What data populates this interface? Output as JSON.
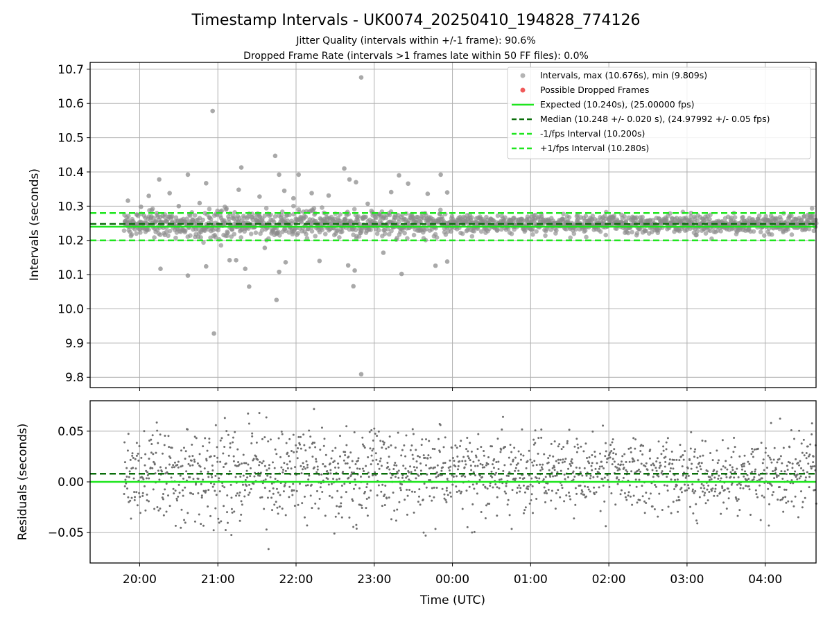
{
  "chart_data": {
    "title": "Timestamp Intervals - UK0074_20250410_194828_774126",
    "subtitle_lines": [
      "Jitter Quality (intervals within +/-1 frame): 90.6%",
      "Dropped Frame Rate (intervals >1 frames late within 50 FF files): 0.0%"
    ],
    "colors": {
      "points": "#8c8c8c",
      "residual_points": "#6e6e6e",
      "dropped": "#f05a5a",
      "expected": "#1ee61e",
      "median": "#0a6e0a",
      "fps_interval": "#1ee61e",
      "grid": "#b0b0b0"
    },
    "panels": [
      {
        "type": "scatter",
        "ylabel": "Intervals (seconds)",
        "ylim": [
          9.77,
          10.72
        ],
        "yticks": [
          9.8,
          9.9,
          10.0,
          10.1,
          10.2,
          10.3,
          10.4,
          10.5,
          10.6,
          10.7
        ],
        "ytick_labels": [
          "9.8",
          "9.9",
          "10.0",
          "10.1",
          "10.2",
          "10.3",
          "10.4",
          "10.5",
          "10.6",
          "10.7"
        ],
        "grid": true,
        "legend_position": "top-right",
        "legend": [
          "Intervals, max (10.676s), min (9.809s)",
          "Possible Dropped Frames",
          "Expected (10.240s), (25.00000 fps)",
          "Median (10.248 +/- 0.020 s), (24.97992 +/- 0.05 fps)",
          "-1/fps Interval (10.200s)",
          "+1/fps Interval (10.280s)"
        ],
        "hlines": [
          {
            "name": "Expected",
            "y": 10.24,
            "style": "solid"
          },
          {
            "name": "Median",
            "y": 10.248,
            "style": "dashed"
          },
          {
            "name": "-1/fps Interval",
            "y": 10.2,
            "style": "dashed"
          },
          {
            "name": "+1/fps Interval",
            "y": 10.28,
            "style": "dashed"
          }
        ],
        "series": [
          {
            "name": "Intervals",
            "typical_spread_s": 0.02,
            "outliers": [
              {
                "t": "19:51",
                "y": 10.316
              },
              {
                "t": "20:01",
                "y": 10.298
              },
              {
                "t": "20:07",
                "y": 10.33
              },
              {
                "t": "20:15",
                "y": 10.378
              },
              {
                "t": "20:16",
                "y": 10.117
              },
              {
                "t": "20:23",
                "y": 10.338
              },
              {
                "t": "20:30",
                "y": 10.3
              },
              {
                "t": "20:37",
                "y": 10.097
              },
              {
                "t": "20:37",
                "y": 10.392
              },
              {
                "t": "20:46",
                "y": 10.309
              },
              {
                "t": "20:51",
                "y": 10.124
              },
              {
                "t": "20:51",
                "y": 10.367
              },
              {
                "t": "20:56",
                "y": 10.578
              },
              {
                "t": "20:57",
                "y": 9.928
              },
              {
                "t": "21:09",
                "y": 10.142
              },
              {
                "t": "21:14",
                "y": 10.142
              },
              {
                "t": "21:16",
                "y": 10.348
              },
              {
                "t": "21:18",
                "y": 10.413
              },
              {
                "t": "21:21",
                "y": 10.117
              },
              {
                "t": "21:24",
                "y": 10.065
              },
              {
                "t": "21:32",
                "y": 10.328
              },
              {
                "t": "21:36",
                "y": 10.178
              },
              {
                "t": "21:44",
                "y": 10.447
              },
              {
                "t": "21:45",
                "y": 10.026
              },
              {
                "t": "21:47",
                "y": 10.108
              },
              {
                "t": "21:47",
                "y": 10.392
              },
              {
                "t": "21:51",
                "y": 10.345
              },
              {
                "t": "21:52",
                "y": 10.136
              },
              {
                "t": "21:58",
                "y": 10.323
              },
              {
                "t": "22:02",
                "y": 10.392
              },
              {
                "t": "22:12",
                "y": 10.338
              },
              {
                "t": "22:18",
                "y": 10.14
              },
              {
                "t": "22:25",
                "y": 10.331
              },
              {
                "t": "22:37",
                "y": 10.41
              },
              {
                "t": "22:40",
                "y": 10.127
              },
              {
                "t": "22:41",
                "y": 10.378
              },
              {
                "t": "22:44",
                "y": 10.066
              },
              {
                "t": "22:45",
                "y": 10.112
              },
              {
                "t": "22:46",
                "y": 10.37
              },
              {
                "t": "22:50",
                "y": 10.676
              },
              {
                "t": "22:50",
                "y": 9.809
              },
              {
                "t": "22:55",
                "y": 10.307
              },
              {
                "t": "23:07",
                "y": 10.164
              },
              {
                "t": "23:13",
                "y": 10.341
              },
              {
                "t": "23:19",
                "y": 10.39
              },
              {
                "t": "23:21",
                "y": 10.102
              },
              {
                "t": "23:26",
                "y": 10.366
              },
              {
                "t": "23:41",
                "y": 10.336
              },
              {
                "t": "23:47",
                "y": 10.126
              },
              {
                "t": "23:51",
                "y": 10.392
              },
              {
                "t": "23:56",
                "y": 10.34
              },
              {
                "t": "23:56",
                "y": 10.138
              }
            ]
          },
          {
            "name": "Possible Dropped Frames",
            "points": []
          }
        ]
      },
      {
        "type": "scatter",
        "ylabel": "Residuals (seconds)",
        "ylim": [
          -0.08,
          0.08
        ],
        "yticks": [
          -0.05,
          0.0,
          0.05
        ],
        "ytick_labels": [
          "−0.05",
          "0.00",
          "0.05"
        ],
        "grid": true,
        "hlines": [
          {
            "name": "Expected",
            "y": 0.0,
            "style": "solid"
          },
          {
            "name": "Median",
            "y": 0.008,
            "style": "dashed"
          }
        ],
        "series": [
          {
            "name": "Residuals",
            "typical_spread_s": 0.025
          }
        ]
      }
    ],
    "xlabel": "Time (UTC)",
    "x_ticks": [
      "20:00",
      "21:00",
      "22:00",
      "23:00",
      "00:00",
      "01:00",
      "02:00",
      "03:00",
      "04:00"
    ],
    "x_range": [
      "19:22",
      "04:39"
    ],
    "data_range": [
      "19:48",
      "04:39"
    ]
  }
}
